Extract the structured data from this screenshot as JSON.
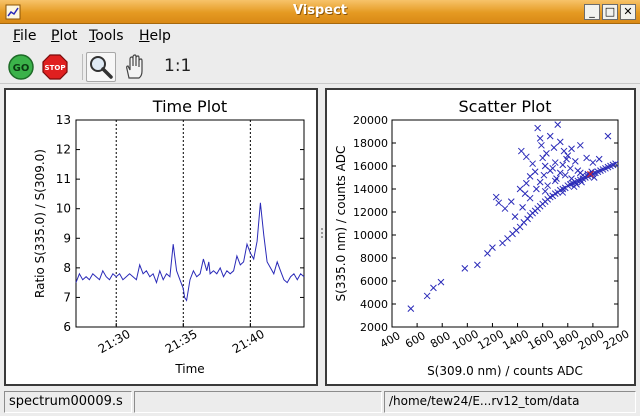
{
  "window": {
    "title": "Vispect",
    "minimize_icon": "minimize-icon",
    "maximize_icon": "maximize-icon",
    "close_icon": "close-icon"
  },
  "menu": [
    {
      "key": "F",
      "rest": "ile"
    },
    {
      "key": "P",
      "rest": "lot"
    },
    {
      "key": "T",
      "rest": "ools"
    },
    {
      "key": "H",
      "rest": "elp"
    }
  ],
  "toolbar": {
    "go_label": "GO",
    "stop_label": "STOP",
    "zoom_icon": "magnifier-icon",
    "pan_icon": "hand-icon",
    "one_to_one_label": "1:1",
    "colors": {
      "go": "#3bb24a",
      "stop": "#e02020"
    }
  },
  "chart_data": [
    {
      "type": "line",
      "title": "Time Plot",
      "xlabel": "Time",
      "ylabel": "Ratio S(335.0) / S(309.0)",
      "xlim": [
        "21:27",
        "21:44"
      ],
      "ylim": [
        6,
        13
      ],
      "x_ticks": [
        "21:30",
        "21:35",
        "21:40"
      ],
      "y_ticks": [
        6,
        7,
        8,
        9,
        10,
        11,
        12,
        13
      ],
      "vertical_markers": [
        "21:30",
        "21:35",
        "21:40"
      ],
      "grid": false,
      "color": "#2a2ab8",
      "series": [
        {
          "x_minutes": [
            0,
            0.25,
            0.5,
            0.75,
            1,
            1.25,
            1.5,
            1.75,
            2,
            2.25,
            2.5,
            2.75,
            3,
            3.25,
            3.5,
            3.75,
            4,
            4.25,
            4.5,
            4.75,
            5,
            5.25,
            5.5,
            5.75,
            6,
            6.25,
            6.5,
            6.75,
            7,
            7.25,
            7.5,
            7.75,
            8,
            8.1,
            8.25,
            8.5,
            8.75,
            9,
            9.25,
            9.5,
            9.75,
            9.9,
            10,
            10.25,
            10.5,
            10.75,
            11,
            11.25,
            11.5,
            11.75,
            12,
            12.25,
            12.5,
            12.75,
            13,
            13.25,
            13.5,
            13.75,
            14,
            14.25,
            14.5,
            14.75,
            15,
            15.25,
            15.5,
            15.75,
            16,
            16.25,
            16.5,
            16.75,
            17
          ],
          "y": [
            7.5,
            7.8,
            7.6,
            7.7,
            7.6,
            7.8,
            7.7,
            7.6,
            7.9,
            7.7,
            7.6,
            7.8,
            7.7,
            7.8,
            7.6,
            7.7,
            7.8,
            7.7,
            7.6,
            8.1,
            7.8,
            7.9,
            7.7,
            7.8,
            7.5,
            7.9,
            7.6,
            7.8,
            7.7,
            8.8,
            7.9,
            7.6,
            7.3,
            7.0,
            6.9,
            7.6,
            7.9,
            7.7,
            7.8,
            8.3,
            7.9,
            8.2,
            7.8,
            7.9,
            7.8,
            8.0,
            7.7,
            7.9,
            7.8,
            7.9,
            8.4,
            8.1,
            8.2,
            8.8,
            8.5,
            8.3,
            8.9,
            10.2,
            9.1,
            8.2,
            8.0,
            7.8,
            8.2,
            7.9,
            7.6,
            7.5,
            7.7,
            7.8,
            7.6,
            7.8,
            7.7
          ]
        }
      ]
    },
    {
      "type": "scatter",
      "title": "Scatter Plot",
      "xlabel": "S(309.0 nm) / counts ADC",
      "ylabel": "S(335.0 nm) / counts ADC",
      "xlim": [
        400,
        2200
      ],
      "ylim": [
        2000,
        20000
      ],
      "x_ticks": [
        400,
        600,
        800,
        1000,
        1200,
        1400,
        1600,
        1800,
        2000,
        2200
      ],
      "y_ticks": [
        2000,
        4000,
        6000,
        8000,
        10000,
        12000,
        14000,
        16000,
        18000,
        20000
      ],
      "grid": false,
      "marker": "x",
      "color": "#2a2ab8",
      "highlight_color": "#e02020",
      "points": [
        [
          550,
          3600
        ],
        [
          680,
          4700
        ],
        [
          730,
          5400
        ],
        [
          790,
          5900
        ],
        [
          980,
          7100
        ],
        [
          1080,
          7400
        ],
        [
          1160,
          8400
        ],
        [
          1200,
          8900
        ],
        [
          1280,
          9300
        ],
        [
          1320,
          9700
        ],
        [
          1360,
          10100
        ],
        [
          1390,
          10400
        ],
        [
          1420,
          10700
        ],
        [
          1450,
          11100
        ],
        [
          1480,
          11400
        ],
        [
          1500,
          11700
        ],
        [
          1520,
          11900
        ],
        [
          1540,
          12100
        ],
        [
          1560,
          12300
        ],
        [
          1580,
          12500
        ],
        [
          1600,
          12700
        ],
        [
          1620,
          12900
        ],
        [
          1640,
          13100
        ],
        [
          1660,
          13300
        ],
        [
          1680,
          13400
        ],
        [
          1700,
          13600
        ],
        [
          1720,
          13700
        ],
        [
          1740,
          13900
        ],
        [
          1760,
          14000
        ],
        [
          1780,
          14100
        ],
        [
          1800,
          14300
        ],
        [
          1820,
          14400
        ],
        [
          1840,
          14500
        ],
        [
          1860,
          14600
        ],
        [
          1880,
          14700
        ],
        [
          1900,
          14800
        ],
        [
          1920,
          14900
        ],
        [
          1940,
          15000
        ],
        [
          1960,
          15100
        ],
        [
          1980,
          15200
        ],
        [
          2000,
          15300
        ],
        [
          2020,
          15400
        ],
        [
          2040,
          15500
        ],
        [
          2060,
          15600
        ],
        [
          2080,
          15700
        ],
        [
          2100,
          15800
        ],
        [
          2120,
          15900
        ],
        [
          2140,
          16000
        ],
        [
          2160,
          16100
        ],
        [
          2180,
          16200
        ],
        [
          1880,
          15600
        ],
        [
          1900,
          15400
        ],
        [
          1920,
          15200
        ],
        [
          1960,
          15300
        ],
        [
          1990,
          15500
        ],
        [
          2010,
          15000
        ],
        [
          1850,
          14200
        ],
        [
          1830,
          14900
        ],
        [
          1870,
          14400
        ],
        [
          1910,
          14600
        ],
        [
          1230,
          13300
        ],
        [
          1250,
          12800
        ],
        [
          1300,
          12300
        ],
        [
          1350,
          12900
        ],
        [
          1380,
          11600
        ],
        [
          1440,
          12400
        ],
        [
          1460,
          13600
        ],
        [
          1500,
          13200
        ],
        [
          1550,
          14000
        ],
        [
          1580,
          14600
        ],
        [
          1610,
          15200
        ],
        [
          1640,
          14300
        ],
        [
          1680,
          15800
        ],
        [
          1700,
          16300
        ],
        [
          1710,
          14900
        ],
        [
          1740,
          15400
        ],
        [
          1760,
          16100
        ],
        [
          1780,
          15200
        ],
        [
          1790,
          16600
        ],
        [
          1820,
          15800
        ],
        [
          1430,
          17300
        ],
        [
          1470,
          16800
        ],
        [
          1520,
          16200
        ],
        [
          1560,
          19300
        ],
        [
          1580,
          18400
        ],
        [
          1590,
          17800
        ],
        [
          1630,
          17100
        ],
        [
          1660,
          18600
        ],
        [
          1690,
          17600
        ],
        [
          1720,
          19600
        ],
        [
          1740,
          18100
        ],
        [
          1770,
          17300
        ],
        [
          1800,
          16900
        ],
        [
          1830,
          17500
        ],
        [
          1860,
          16400
        ],
        [
          1900,
          17800
        ],
        [
          1950,
          16700
        ],
        [
          2000,
          16300
        ],
        [
          2050,
          16600
        ],
        [
          2120,
          18600
        ],
        [
          1600,
          16700
        ],
        [
          1620,
          16000
        ],
        [
          1660,
          15600
        ],
        [
          1540,
          15500
        ],
        [
          1500,
          15100
        ],
        [
          1470,
          14500
        ],
        [
          1420,
          14000
        ],
        [
          1620,
          13800
        ],
        [
          1700,
          14700
        ],
        [
          1760,
          13700
        ]
      ],
      "highlight_points": [
        [
          1980,
          15300
        ]
      ]
    }
  ],
  "status": {
    "left": "spectrum00009.s",
    "middle": "",
    "right": "/home/tew24/E...rv12_tom/data"
  }
}
